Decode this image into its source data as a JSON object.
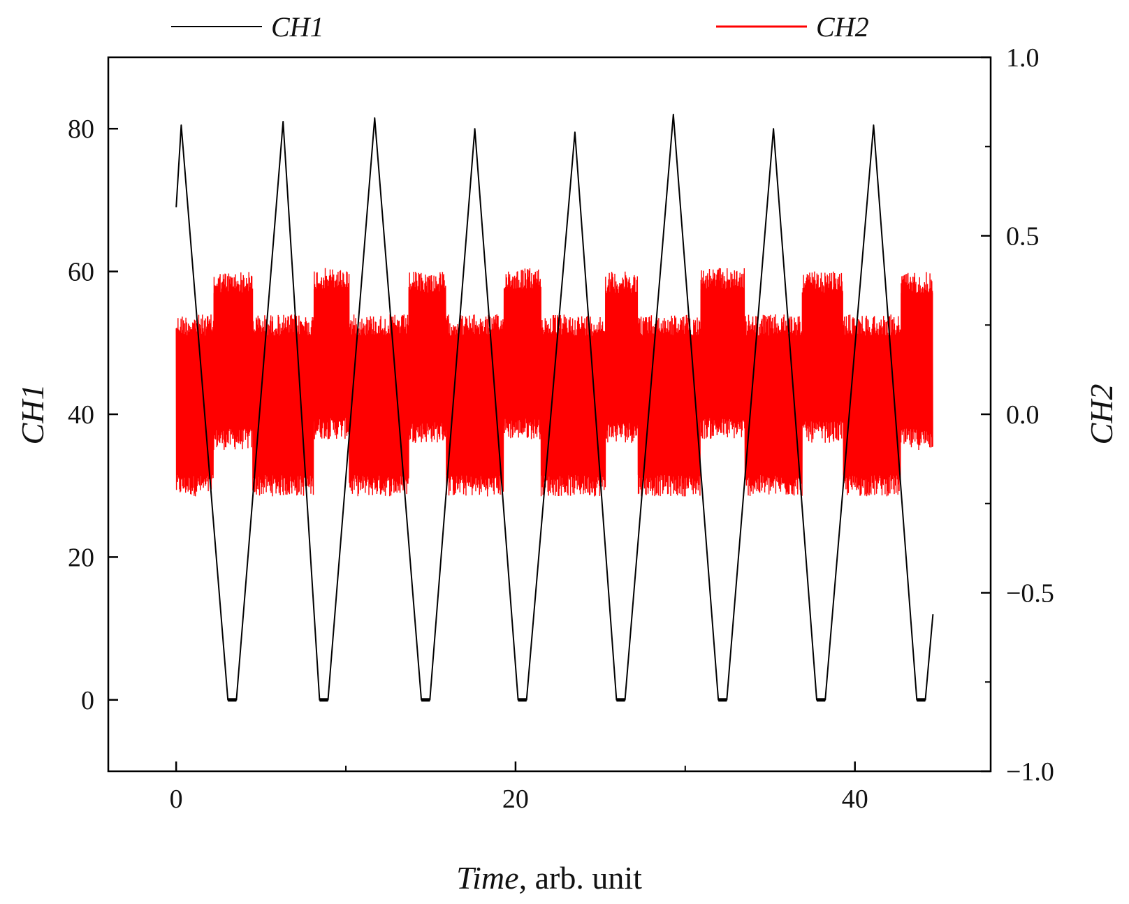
{
  "chart_data": {
    "type": "line",
    "title": "",
    "xlabel_italic": "Time,",
    "xlabel_rest": " arb. unit",
    "ylabel_left": "CH1",
    "ylabel_right": "CH2",
    "xlim": [
      -4,
      48
    ],
    "ylim_left": [
      -10,
      90
    ],
    "ylim_right": [
      -1.0,
      1.0
    ],
    "x_ticks": [
      0,
      20,
      40
    ],
    "x_tick_labels": [
      "0",
      "20",
      "40"
    ],
    "x_minor_ticks": [
      10,
      30
    ],
    "y_left_ticks": [
      0,
      20,
      40,
      60,
      80
    ],
    "y_left_tick_labels": [
      "0",
      "20",
      "40",
      "60",
      "80"
    ],
    "y_right_ticks": [
      -1.0,
      -0.5,
      0.0,
      0.5,
      1.0
    ],
    "y_right_tick_labels": [
      "−1.0",
      "−0.5",
      "0.0",
      "0.5",
      "1.0"
    ],
    "y_right_minor_ticks": [
      -0.75,
      -0.25,
      0.25,
      0.75
    ],
    "legend_placement": "top",
    "grid": false,
    "series": [
      {
        "name": "CH1",
        "axis": "left",
        "color": "#000000",
        "kind": "triangle-wave",
        "x_start": 0,
        "x_end": 44.6,
        "start_value": 69,
        "end_value": 12,
        "peaks": [
          {
            "x": 0.3,
            "y": 80.5
          },
          {
            "x": 6.3,
            "y": 81
          },
          {
            "x": 11.7,
            "y": 81.5
          },
          {
            "x": 17.6,
            "y": 80
          },
          {
            "x": 23.5,
            "y": 79.5
          },
          {
            "x": 29.3,
            "y": 82
          },
          {
            "x": 35.2,
            "y": 80
          },
          {
            "x": 41.1,
            "y": 80.5
          }
        ],
        "troughs": [
          {
            "x": 3.3,
            "y": 0
          },
          {
            "x": 8.7,
            "y": 0
          },
          {
            "x": 14.7,
            "y": 0
          },
          {
            "x": 20.4,
            "y": 0
          },
          {
            "x": 26.2,
            "y": 0
          },
          {
            "x": 32.2,
            "y": 0
          },
          {
            "x": 38.0,
            "y": 0
          },
          {
            "x": 43.9,
            "y": 0
          }
        ],
        "trough_flat_width": 0.5
      },
      {
        "name": "CH2",
        "axis": "right",
        "color": "#ff0000",
        "kind": "noisy-band",
        "x_start": 0,
        "x_end": 44.6,
        "center": 0.05,
        "segments": [
          {
            "x0": 0.0,
            "x1": 2.2,
            "upper": 0.28,
            "lower": -0.23
          },
          {
            "x0": 2.2,
            "x1": 4.5,
            "upper": 0.4,
            "lower": -0.1
          },
          {
            "x0": 4.5,
            "x1": 8.1,
            "upper": 0.28,
            "lower": -0.23
          },
          {
            "x0": 8.1,
            "x1": 10.2,
            "upper": 0.41,
            "lower": -0.07
          },
          {
            "x0": 10.2,
            "x1": 13.7,
            "upper": 0.28,
            "lower": -0.23
          },
          {
            "x0": 13.7,
            "x1": 15.9,
            "upper": 0.4,
            "lower": -0.08
          },
          {
            "x0": 15.9,
            "x1": 19.3,
            "upper": 0.28,
            "lower": -0.23
          },
          {
            "x0": 19.3,
            "x1": 21.5,
            "upper": 0.41,
            "lower": -0.07
          },
          {
            "x0": 21.5,
            "x1": 25.3,
            "upper": 0.28,
            "lower": -0.23
          },
          {
            "x0": 25.3,
            "x1": 27.2,
            "upper": 0.4,
            "lower": -0.08
          },
          {
            "x0": 27.2,
            "x1": 30.9,
            "upper": 0.28,
            "lower": -0.23
          },
          {
            "x0": 30.9,
            "x1": 33.5,
            "upper": 0.41,
            "lower": -0.07
          },
          {
            "x0": 33.5,
            "x1": 36.9,
            "upper": 0.28,
            "lower": -0.23
          },
          {
            "x0": 36.9,
            "x1": 39.3,
            "upper": 0.4,
            "lower": -0.08
          },
          {
            "x0": 39.3,
            "x1": 42.7,
            "upper": 0.28,
            "lower": -0.23
          },
          {
            "x0": 42.7,
            "x1": 44.6,
            "upper": 0.4,
            "lower": -0.1
          }
        ]
      }
    ]
  }
}
